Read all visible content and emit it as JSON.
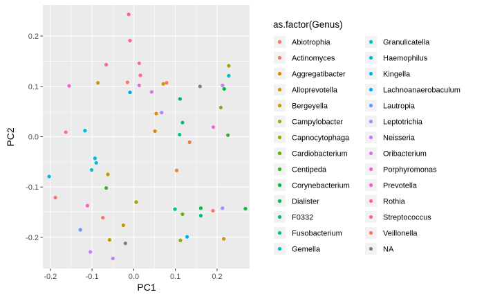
{
  "chart_data": {
    "type": "scatter",
    "xlabel": "PC1",
    "ylabel": "PC2",
    "xlim": [
      -0.218,
      0.278
    ],
    "ylim": [
      -0.262,
      0.262
    ],
    "x_ticks": [
      -0.2,
      -0.1,
      0.0,
      0.1,
      0.2
    ],
    "x_tick_labels": [
      "-0.2",
      "-0.1",
      "0.0",
      "0.1",
      "0.2"
    ],
    "y_ticks": [
      -0.2,
      -0.1,
      0.0,
      0.1,
      0.2
    ],
    "y_tick_labels": [
      "-0.2",
      "-0.1",
      "0.0",
      "0.1",
      "0.2"
    ],
    "grid": true,
    "legend": {
      "title": "as.factor(Genus)",
      "position": "right",
      "columns": 2
    },
    "series": [
      {
        "name": "Abiotrophia",
        "color": "#F8766D",
        "points": [
          [
            -0.015,
            0.108
          ]
        ]
      },
      {
        "name": "Actinomyces",
        "color": "#EE7D4C",
        "points": [
          [
            0.103,
            -0.067
          ],
          [
            0.134,
            -0.011
          ]
        ]
      },
      {
        "name": "Aggregatibacter",
        "color": "#E28A00",
        "points": [
          [
            0.216,
            -0.203
          ],
          [
            0.054,
            0.046
          ]
        ]
      },
      {
        "name": "Alloprevotella",
        "color": "#D29200",
        "points": [
          [
            -0.086,
            0.107
          ],
          [
            0.051,
            0.011
          ],
          [
            -0.062,
            -0.075
          ],
          [
            0.071,
            0.105
          ]
        ]
      },
      {
        "name": "Bergeyella",
        "color": "#BF9A00",
        "points": [
          [
            -0.025,
            -0.176
          ],
          [
            -0.058,
            -0.205
          ]
        ]
      },
      {
        "name": "Campylobacter",
        "color": "#A9A300",
        "points": [
          [
            0.228,
            0.141
          ],
          [
            0.006,
            -0.13
          ]
        ]
      },
      {
        "name": "Capnocytophaga",
        "color": "#8EAB00",
        "points": [
          [
            0.209,
            0.058
          ],
          [
            0.112,
            -0.206
          ]
        ]
      },
      {
        "name": "Cardiobacterium",
        "color": "#66B100",
        "points": [
          [
            0.117,
            -0.154
          ]
        ]
      },
      {
        "name": "Centipeda",
        "color": "#31B425",
        "points": [
          [
            0.226,
            0.003
          ],
          [
            -0.066,
            -0.102
          ]
        ]
      },
      {
        "name": "Corynebacterium",
        "color": "#00B73F",
        "points": [
          [
            0.217,
            0.095
          ],
          [
            0.268,
            -0.143
          ]
        ]
      },
      {
        "name": "Dialister",
        "color": "#00BA5D",
        "points": [
          [
            0.111,
            0.075
          ],
          [
            0.161,
            -0.142
          ]
        ]
      },
      {
        "name": "F0332",
        "color": "#00BC79",
        "points": [
          [
            0.117,
            0.028
          ],
          [
            0.161,
            -0.157
          ]
        ]
      },
      {
        "name": "Fusobacterium",
        "color": "#00BE95",
        "points": [
          [
            0.11,
            0.004
          ],
          [
            0.099,
            -0.144
          ]
        ]
      },
      {
        "name": "Gemella",
        "color": "#00C0AE",
        "points": [
          [
            0.228,
            0.121
          ]
        ]
      },
      {
        "name": "Granulicatella",
        "color": "#00C0C8",
        "points": [
          [
            -0.101,
            -0.066
          ]
        ]
      },
      {
        "name": "Haemophilus",
        "color": "#00BCD9",
        "points": [
          [
            -0.117,
            0.012
          ],
          [
            -0.093,
            -0.043
          ]
        ]
      },
      {
        "name": "Kingella",
        "color": "#00B5E7",
        "points": [
          [
            -0.203,
            -0.079
          ],
          [
            -0.09,
            -0.052
          ]
        ]
      },
      {
        "name": "Lachnoanaerobaculum",
        "color": "#00AAF4",
        "points": [
          [
            -0.009,
            0.088
          ],
          [
            0.128,
            -0.199
          ]
        ]
      },
      {
        "name": "Lautropia",
        "color": "#619CFF",
        "points": [
          [
            -0.128,
            -0.185
          ]
        ]
      },
      {
        "name": "Leptotrichia",
        "color": "#A58AFF",
        "points": [
          [
            0.067,
            0.048
          ],
          [
            0.213,
            -0.142
          ]
        ]
      },
      {
        "name": "Neisseria",
        "color": "#C77CFF",
        "points": [
          [
            0.213,
            0.102
          ],
          [
            -0.104,
            -0.229
          ],
          [
            -0.05,
            -0.242
          ]
        ]
      },
      {
        "name": "Oribacterium",
        "color": "#E06FF0",
        "points": [
          [
            0.043,
            0.089
          ]
        ]
      },
      {
        "name": "Porphyromonas",
        "color": "#F064DB",
        "points": [
          [
            0.191,
            0.019
          ],
          [
            0.013,
            0.102
          ]
        ]
      },
      {
        "name": "Prevotella",
        "color": "#F961C1",
        "points": [
          [
            -0.155,
            0.101
          ],
          [
            -0.111,
            -0.137
          ]
        ]
      },
      {
        "name": "Rothia",
        "color": "#FF61A5",
        "points": [
          [
            -0.009,
            0.191
          ],
          [
            0.013,
            0.146
          ]
        ]
      },
      {
        "name": "Streptococcus",
        "color": "#FF6586",
        "points": [
          [
            -0.012,
            0.243
          ],
          [
            -0.066,
            0.143
          ],
          [
            0.016,
            0.122
          ]
        ]
      },
      {
        "name": "Veillonella",
        "color": "#F8766D",
        "points": [
          [
            -0.163,
            0.009
          ],
          [
            -0.188,
            -0.121
          ],
          [
            0.19,
            -0.147
          ],
          [
            0.079,
            0.107
          ],
          [
            -0.074,
            -0.161
          ]
        ]
      },
      {
        "name": "NA",
        "color": "#7F7F7F",
        "points": [
          [
            0.159,
            0.1
          ],
          [
            -0.02,
            -0.212
          ]
        ]
      }
    ]
  }
}
